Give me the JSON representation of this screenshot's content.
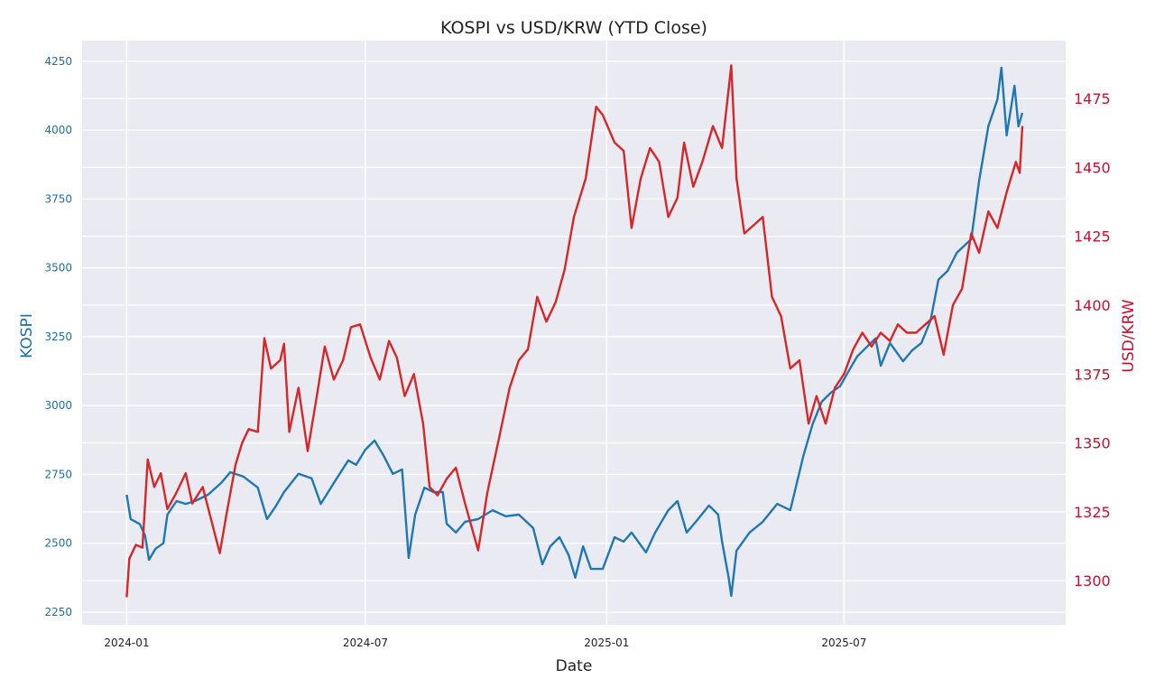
{
  "chart_data": {
    "type": "line",
    "title": "KOSPI vs USD/KRW (YTD Close)",
    "xlabel": "Date",
    "x_origin": "2024-01-01",
    "x_units": "days since x_origin",
    "xlim": [
      -34,
      716
    ],
    "x_ticks": [
      {
        "day": 0,
        "label": "2024-01"
      },
      {
        "day": 182,
        "label": "2024-07"
      },
      {
        "day": 366,
        "label": "2025-01"
      },
      {
        "day": 547,
        "label": "2025-07"
      }
    ],
    "grid": true,
    "left_axis": {
      "label": "KOSPI",
      "color": "#1a6fa8",
      "ylim": [
        2204,
        4325
      ],
      "ticks": [
        "2250",
        "2500",
        "2750",
        "3000",
        "3250",
        "3500",
        "3750",
        "4000",
        "4250"
      ]
    },
    "right_axis": {
      "label": "USD/KRW",
      "color": "#c8102e",
      "ylim": [
        1284,
        1496
      ],
      "ticks": [
        "1300",
        "1325",
        "1350",
        "1375",
        "1400",
        "1425",
        "1450",
        "1475"
      ]
    },
    "series": [
      {
        "name": "KOSPI",
        "axis": "left",
        "color": "#1f77b4",
        "x": [
          0,
          3,
          10,
          14,
          17,
          22,
          28,
          31,
          38,
          45,
          52,
          62,
          72,
          79,
          89,
          100,
          107,
          114,
          120,
          131,
          141,
          148,
          158,
          169,
          175,
          182,
          189,
          196,
          203,
          210,
          215,
          220,
          227,
          234,
          241,
          244,
          251,
          258,
          268,
          279,
          289,
          299,
          310,
          317,
          323,
          330,
          337,
          342,
          348,
          354,
          363,
          372,
          379,
          385,
          396,
          403,
          413,
          420,
          427,
          434,
          444,
          451,
          454,
          459,
          461,
          465,
          475,
          485,
          496,
          506,
          511,
          516,
          523,
          530,
          537,
          544,
          551,
          557,
          564,
          571,
          575,
          582,
          592,
          599,
          606,
          613,
          619,
          626,
          633,
          644,
          650,
          657,
          664,
          667,
          671,
          677,
          680,
          683
        ],
        "y": [
          2676,
          2588,
          2570,
          2528,
          2440,
          2480,
          2500,
          2604,
          2653,
          2643,
          2653,
          2676,
          2719,
          2758,
          2742,
          2702,
          2588,
          2637,
          2686,
          2752,
          2736,
          2643,
          2719,
          2801,
          2785,
          2840,
          2873,
          2817,
          2752,
          2768,
          2447,
          2604,
          2702,
          2686,
          2686,
          2571,
          2539,
          2578,
          2588,
          2620,
          2598,
          2604,
          2555,
          2424,
          2489,
          2522,
          2457,
          2375,
          2489,
          2407,
          2407,
          2522,
          2506,
          2539,
          2467,
          2539,
          2620,
          2653,
          2539,
          2578,
          2637,
          2604,
          2506,
          2375,
          2309,
          2473,
          2539,
          2578,
          2643,
          2620,
          2719,
          2817,
          2932,
          3014,
          3047,
          3070,
          3129,
          3178,
          3211,
          3244,
          3145,
          3227,
          3161,
          3201,
          3227,
          3309,
          3457,
          3489,
          3555,
          3604,
          3817,
          4014,
          4112,
          4227,
          3981,
          4161,
          4014,
          4063
        ]
      },
      {
        "name": "USD/KRW",
        "axis": "right",
        "color": "#d62728",
        "x": [
          0,
          2,
          7,
          12,
          16,
          21,
          26,
          31,
          38,
          45,
          50,
          58,
          65,
          71,
          76,
          83,
          88,
          93,
          100,
          105,
          110,
          117,
          120,
          124,
          131,
          138,
          145,
          151,
          158,
          165,
          171,
          178,
          186,
          193,
          200,
          206,
          212,
          219,
          226,
          231,
          237,
          244,
          251,
          258,
          268,
          275,
          284,
          292,
          299,
          306,
          313,
          320,
          327,
          334,
          341,
          350,
          358,
          363,
          372,
          379,
          385,
          392,
          399,
          406,
          413,
          420,
          425,
          432,
          439,
          447,
          454,
          461,
          465,
          471,
          478,
          485,
          492,
          499,
          506,
          513,
          520,
          526,
          533,
          540,
          547,
          554,
          561,
          568,
          575,
          582,
          588,
          595,
          602,
          609,
          616,
          623,
          630,
          637,
          644,
          650,
          657,
          664,
          671,
          678,
          681,
          683
        ],
        "y": [
          1294,
          1308,
          1313,
          1312,
          1344,
          1334,
          1339,
          1326,
          1332,
          1339,
          1328,
          1334,
          1321,
          1310,
          1324,
          1342,
          1350,
          1355,
          1354,
          1388,
          1377,
          1380,
          1386,
          1354,
          1370,
          1347,
          1367,
          1385,
          1373,
          1380,
          1392,
          1393,
          1381,
          1373,
          1387,
          1381,
          1367,
          1375,
          1357,
          1334,
          1331,
          1337,
          1341,
          1328,
          1311,
          1332,
          1352,
          1370,
          1380,
          1384,
          1403,
          1394,
          1401,
          1413,
          1432,
          1446,
          1472,
          1469,
          1459,
          1456,
          1428,
          1446,
          1457,
          1452,
          1432,
          1439,
          1459,
          1443,
          1452,
          1465,
          1457,
          1487,
          1446,
          1426,
          1429,
          1432,
          1403,
          1396,
          1377,
          1380,
          1357,
          1367,
          1357,
          1370,
          1375,
          1384,
          1390,
          1385,
          1390,
          1387,
          1393,
          1390,
          1390,
          1393,
          1396,
          1382,
          1400,
          1406,
          1426,
          1419,
          1434,
          1428,
          1441,
          1452,
          1448,
          1465
        ]
      }
    ]
  }
}
